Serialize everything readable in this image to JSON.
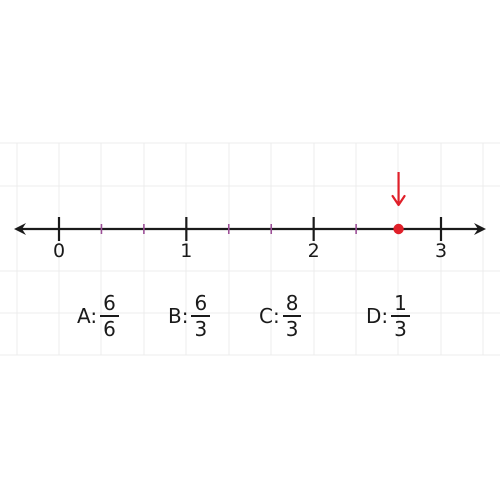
{
  "colors": {
    "axis": "#1a1a1a",
    "minor_tick": "#9b4f96",
    "marker": "#e0202a",
    "grid": "#ececec"
  },
  "number_line": {
    "min": 0,
    "max": 3,
    "subdivisions_per_unit": 3,
    "major_labels": [
      "0",
      "1",
      "2",
      "3"
    ],
    "marked_point": 2.6667
  },
  "choices": [
    {
      "letter": "A:",
      "numerator": "6",
      "denominator": "6"
    },
    {
      "letter": "B:",
      "numerator": "6",
      "denominator": "3"
    },
    {
      "letter": "C:",
      "numerator": "8",
      "denominator": "3"
    },
    {
      "letter": "D:",
      "numerator": "1",
      "denominator": "3"
    }
  ]
}
